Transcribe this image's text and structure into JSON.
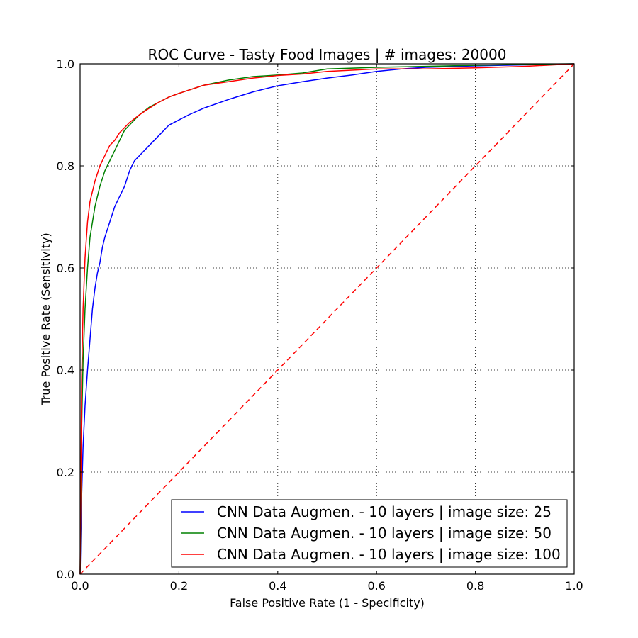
{
  "chart_data": {
    "type": "line",
    "title": "ROC Curve - Tasty Food Images | # images: 20000",
    "xlabel": "False Positive Rate (1 - Specificity)",
    "ylabel": "True Positive Rate (Sensitivity)",
    "xlim": [
      0,
      1
    ],
    "ylim": [
      0,
      1
    ],
    "xticks": [
      "0.0",
      "0.2",
      "0.4",
      "0.6",
      "0.8",
      "1.0"
    ],
    "yticks": [
      "0.0",
      "0.2",
      "0.4",
      "0.6",
      "0.8",
      "1.0"
    ],
    "grid": true,
    "legend_position": "lower-right",
    "series": [
      {
        "name": "CNN Data Augmen. - 10 layers | image size: 25",
        "color": "#0000ff",
        "style": "solid",
        "x": [
          0.0,
          0.003,
          0.006,
          0.01,
          0.015,
          0.02,
          0.025,
          0.03,
          0.035,
          0.04,
          0.045,
          0.05,
          0.06,
          0.07,
          0.08,
          0.09,
          0.1,
          0.11,
          0.12,
          0.14,
          0.16,
          0.18,
          0.2,
          0.22,
          0.25,
          0.3,
          0.35,
          0.4,
          0.45,
          0.5,
          0.55,
          0.6,
          0.65,
          0.7,
          0.8,
          0.9,
          1.0
        ],
        "y": [
          0.0,
          0.15,
          0.25,
          0.33,
          0.4,
          0.46,
          0.52,
          0.56,
          0.59,
          0.61,
          0.64,
          0.66,
          0.69,
          0.72,
          0.74,
          0.76,
          0.79,
          0.81,
          0.82,
          0.84,
          0.86,
          0.88,
          0.89,
          0.9,
          0.913,
          0.93,
          0.945,
          0.957,
          0.965,
          0.972,
          0.978,
          0.985,
          0.99,
          0.993,
          0.996,
          0.998,
          1.0
        ]
      },
      {
        "name": "CNN Data Augmen. - 10 layers | image size: 50",
        "color": "#008000",
        "style": "solid",
        "x": [
          0.0,
          0.003,
          0.006,
          0.01,
          0.015,
          0.02,
          0.025,
          0.03,
          0.04,
          0.05,
          0.06,
          0.07,
          0.08,
          0.09,
          0.1,
          0.12,
          0.14,
          0.16,
          0.18,
          0.2,
          0.25,
          0.3,
          0.35,
          0.4,
          0.45,
          0.5,
          0.6,
          0.7,
          0.8,
          0.9,
          1.0
        ],
        "y": [
          0.0,
          0.28,
          0.42,
          0.52,
          0.6,
          0.66,
          0.69,
          0.72,
          0.76,
          0.79,
          0.81,
          0.83,
          0.85,
          0.87,
          0.88,
          0.9,
          0.915,
          0.925,
          0.935,
          0.942,
          0.958,
          0.968,
          0.975,
          0.978,
          0.982,
          0.99,
          0.993,
          0.995,
          0.997,
          0.999,
          1.0
        ]
      },
      {
        "name": "CNN Data Augmen. - 10 layers | image size: 100",
        "color": "#ff0000",
        "style": "solid",
        "x": [
          0.0,
          0.003,
          0.006,
          0.01,
          0.015,
          0.02,
          0.025,
          0.03,
          0.04,
          0.05,
          0.06,
          0.07,
          0.08,
          0.09,
          0.1,
          0.12,
          0.14,
          0.16,
          0.18,
          0.2,
          0.25,
          0.3,
          0.35,
          0.4,
          0.45,
          0.5,
          0.6,
          0.7,
          0.8,
          0.9,
          1.0
        ],
        "y": [
          0.0,
          0.38,
          0.52,
          0.62,
          0.69,
          0.73,
          0.75,
          0.77,
          0.8,
          0.82,
          0.84,
          0.85,
          0.865,
          0.875,
          0.885,
          0.9,
          0.913,
          0.925,
          0.935,
          0.942,
          0.958,
          0.965,
          0.972,
          0.977,
          0.98,
          0.985,
          0.99,
          0.99,
          0.992,
          0.995,
          1.0
        ]
      },
      {
        "name": "",
        "color": "#ff0000",
        "style": "dashed",
        "x": [
          0,
          1
        ],
        "y": [
          0,
          1
        ]
      }
    ]
  }
}
